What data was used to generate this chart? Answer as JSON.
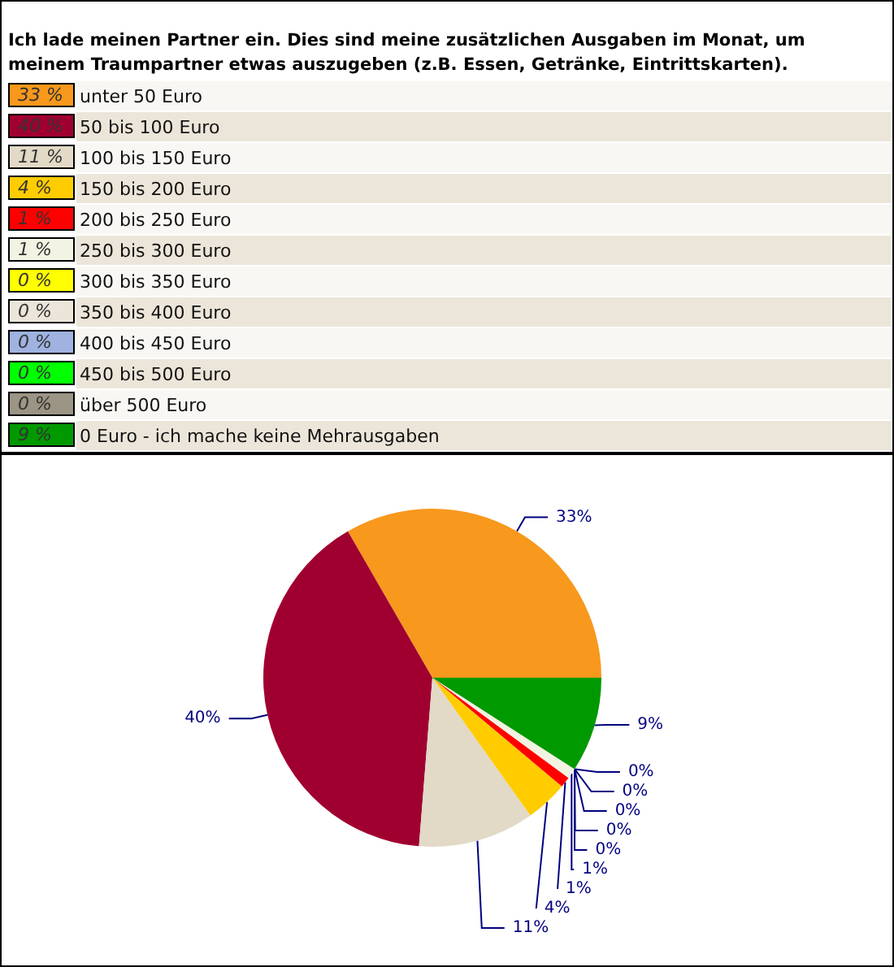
{
  "chart_data": {
    "type": "pie",
    "title": "Ich lade meinen Partner ein. Dies sind meine zusätzlichen Ausgaben im Monat, um meinem Traumpartner etwas auszugeben (z.B. Essen, Getränke, Eintrittskarten).",
    "categories": [
      "unter 50 Euro",
      "50 bis 100 Euro",
      "100 bis 150 Euro",
      "150 bis 200 Euro",
      "200 bis 250 Euro",
      "250 bis 300 Euro",
      "300 bis 350 Euro",
      "350 bis 400 Euro",
      "400 bis 450 Euro",
      "450 bis 500 Euro",
      "über 500 Euro",
      "0 Euro - ich mache keine Mehrausgaben"
    ],
    "values": [
      33,
      40,
      11,
      4,
      1,
      1,
      0,
      0,
      0,
      0,
      0,
      9
    ],
    "colors": [
      "#f8981d",
      "#a00030",
      "#e2d9c6",
      "#ffcc00",
      "#ff0000",
      "#f3f3e3",
      "#ffff00",
      "#ece6da",
      "#9fb2e0",
      "#00ff00",
      "#9c9484",
      "#009900"
    ],
    "value_labels": [
      "33 %",
      "40 %",
      "11 %",
      "4 %",
      "1 %",
      "1 %",
      "0 %",
      "0 %",
      "0 %",
      "0 %",
      "0 %",
      "9 %"
    ],
    "legend": "top"
  }
}
